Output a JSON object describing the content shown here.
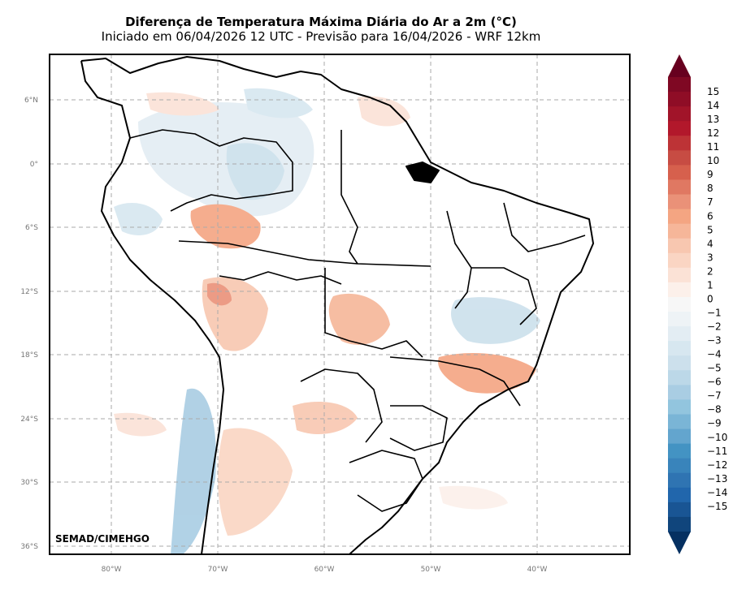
{
  "title": "Diferença de Temperatura Máxima Diária do Ar a 2m (°C)",
  "subtitle": "Iniciado em 06/04/2026 12 UTC - Previsão para 16/04/2026 - WRF 12km",
  "credit": "SEMAD/CIMEHGO",
  "lat_labels": [
    "6°N",
    "0°",
    "6°S",
    "12°S",
    "18°S",
    "24°S",
    "30°S",
    "36°S"
  ],
  "lon_labels": [
    "80°W",
    "70°W",
    "60°W",
    "50°W",
    "40°W"
  ],
  "colorbar": {
    "labels": [
      "15",
      "14",
      "13",
      "12",
      "11",
      "10",
      "9",
      "8",
      "7",
      "6",
      "5",
      "4",
      "3",
      "2",
      "1",
      "0",
      "−1",
      "−2",
      "−3",
      "−4",
      "−5",
      "−6",
      "−7",
      "−8",
      "−9",
      "−10",
      "−11",
      "−12",
      "−13",
      "−14",
      "−15"
    ],
    "top_extend_color": "#67001f",
    "bottom_extend_color": "#053061",
    "colors": [
      "#7f0823",
      "#8f0d26",
      "#a11429",
      "#b2182b",
      "#bd3336",
      "#c74c43",
      "#d6604d",
      "#e07862",
      "#ea9178",
      "#f4a582",
      "#f6b699",
      "#f8c7b0",
      "#fad5c3",
      "#fbe2d6",
      "#fcf0ea",
      "#f7f7f7",
      "#eef3f6",
      "#e3edf3",
      "#d7e7f0",
      "#cce0ec",
      "#bcd8e8",
      "#a9cde3",
      "#92c5de",
      "#7ab5d6",
      "#63a5ce",
      "#4393c3",
      "#3984bb",
      "#2f74b2",
      "#2166ac",
      "#195594",
      "#10457c"
    ]
  },
  "icons": {
    "colorbar-top-arrow": "triangle-up",
    "colorbar-bottom-arrow": "triangle-down"
  }
}
